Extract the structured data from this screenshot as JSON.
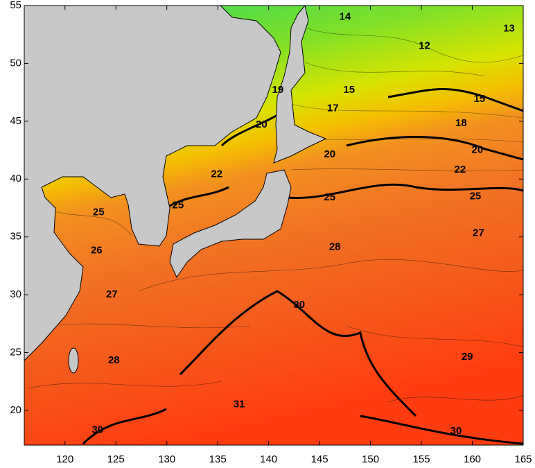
{
  "map": {
    "xlim": [
      116,
      165
    ],
    "ylim": [
      17,
      55
    ],
    "xticks": [
      120,
      125,
      130,
      135,
      140,
      145,
      150,
      155,
      160,
      165
    ],
    "yticks": [
      20,
      25,
      30,
      35,
      40,
      45,
      50,
      55
    ],
    "contour_labels": [
      {
        "label": "14",
        "lon": 147.5,
        "lat": 54.0
      },
      {
        "label": "13",
        "lon": 163.6,
        "lat": 53.0
      },
      {
        "label": "12",
        "lon": 155.3,
        "lat": 51.5
      },
      {
        "label": "15",
        "lon": 147.9,
        "lat": 47.7
      },
      {
        "label": "15",
        "lon": 160.7,
        "lat": 46.9
      },
      {
        "label": "19",
        "lon": 140.9,
        "lat": 47.7
      },
      {
        "label": "17",
        "lon": 146.3,
        "lat": 46.1
      },
      {
        "label": "20",
        "lon": 139.3,
        "lat": 44.7
      },
      {
        "label": "18",
        "lon": 158.9,
        "lat": 44.8
      },
      {
        "label": "20",
        "lon": 146.0,
        "lat": 42.1
      },
      {
        "label": "20",
        "lon": 160.5,
        "lat": 42.5
      },
      {
        "label": "22",
        "lon": 134.9,
        "lat": 40.4
      },
      {
        "label": "22",
        "lon": 158.8,
        "lat": 40.8
      },
      {
        "label": "25",
        "lon": 131.1,
        "lat": 37.7
      },
      {
        "label": "25",
        "lon": 146.0,
        "lat": 38.4
      },
      {
        "label": "25",
        "lon": 160.3,
        "lat": 38.5
      },
      {
        "label": "25",
        "lon": 123.3,
        "lat": 37.1
      },
      {
        "label": "26",
        "lon": 123.1,
        "lat": 33.8
      },
      {
        "label": "27",
        "lon": 160.6,
        "lat": 35.3
      },
      {
        "label": "28",
        "lon": 146.5,
        "lat": 34.1
      },
      {
        "label": "27",
        "lon": 124.6,
        "lat": 30.0
      },
      {
        "label": "30",
        "lon": 143.0,
        "lat": 29.1
      },
      {
        "label": "29",
        "lon": 159.5,
        "lat": 24.6
      },
      {
        "label": "28",
        "lon": 124.8,
        "lat": 24.3
      },
      {
        "label": "31",
        "lon": 137.1,
        "lat": 20.5
      },
      {
        "label": "30",
        "lon": 123.2,
        "lat": 18.3
      },
      {
        "label": "30",
        "lon": 158.4,
        "lat": 18.2
      }
    ]
  }
}
